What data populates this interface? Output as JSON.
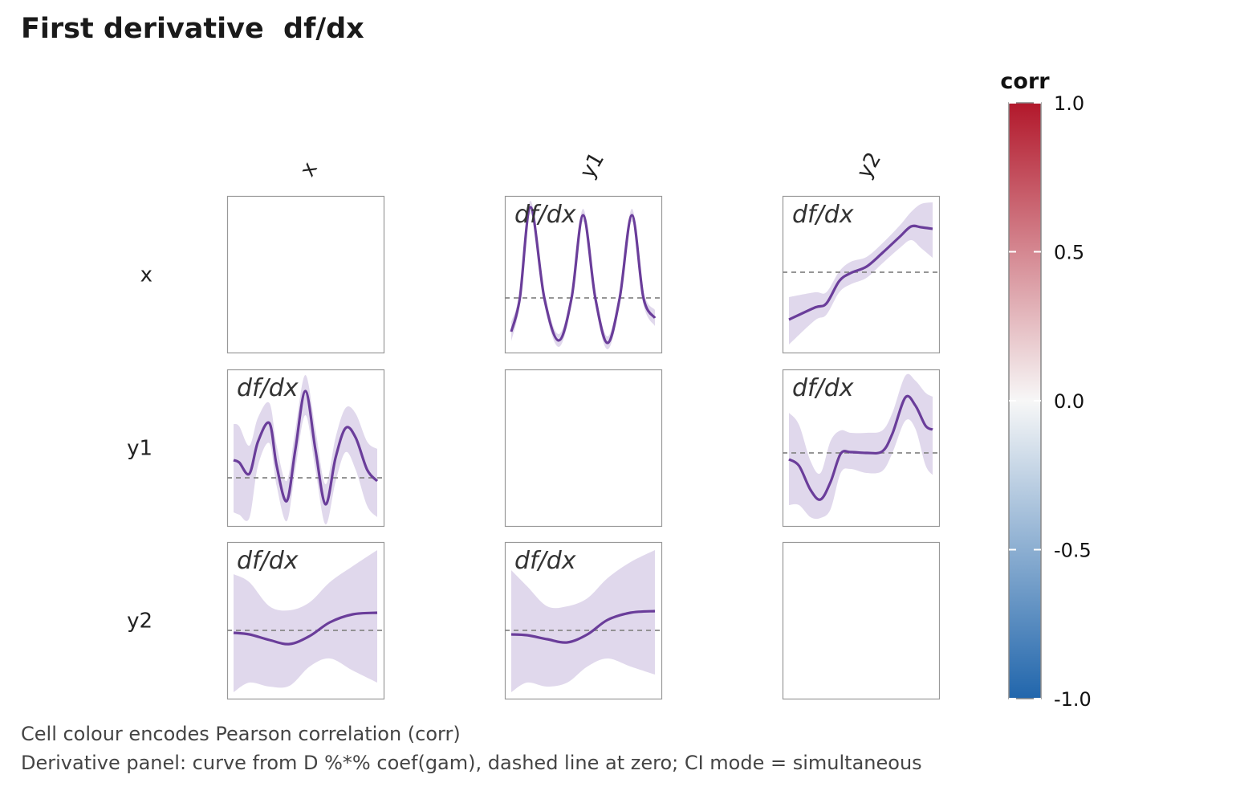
{
  "title": "First derivative  df/dx",
  "captions": [
    "Cell colour encodes Pearson correlation (corr)",
    "Derivative panel: curve from D %*% coef(gam), dashed line at zero; CI mode = simultaneous"
  ],
  "colors": {
    "curve": "#6a3d9a",
    "band": "#e0d8ec",
    "zero_line": "#888888",
    "panel_border": "#999999",
    "corr_high": "#b2182b",
    "corr_mid": "#f7f7f7",
    "corr_low": "#2166ac"
  },
  "chart_data": {
    "type": "line",
    "variables": [
      "x",
      "y1",
      "y2"
    ],
    "panel_label": "df/dx",
    "legend": {
      "title": "corr",
      "ticks": [
        "1.0",
        "0.5",
        "0.0",
        "-0.5",
        "-1.0"
      ],
      "tick_values": [
        1.0,
        0.5,
        0.0,
        -0.5,
        -1.0
      ],
      "range": [
        -1,
        1
      ],
      "placement": "right"
    },
    "panels": [
      {
        "row": "x",
        "col": "y1",
        "ylim": [
          -1.36,
          2.54
        ],
        "x": [
          0,
          0.06,
          0.134,
          0.23,
          0.33,
          0.42,
          0.5,
          0.585,
          0.67,
          0.755,
          0.84,
          0.92,
          1
        ],
        "fit": [
          -0.84,
          0,
          2.26,
          0,
          -1.06,
          0,
          2.06,
          0,
          -1.12,
          0,
          2.06,
          0,
          -0.5
        ],
        "upper": [
          -0.6,
          0.16,
          2.42,
          0.16,
          -0.9,
          0.16,
          2.22,
          0.16,
          -0.96,
          0.16,
          2.22,
          0.16,
          -0.3
        ],
        "lower": [
          -1.08,
          -0.16,
          2.1,
          -0.16,
          -1.22,
          -0.16,
          1.9,
          -0.16,
          -1.28,
          -0.16,
          1.9,
          -0.16,
          -0.7
        ]
      },
      {
        "row": "x",
        "col": "y2",
        "ylim": [
          -2.0,
          1.9
        ],
        "x": [
          0,
          0.18,
          0.26,
          0.35,
          0.43,
          0.54,
          0.65,
          0.77,
          0.85,
          0.92,
          1
        ],
        "fit": [
          -1.18,
          -0.88,
          -0.78,
          -0.22,
          -0.02,
          0.14,
          0.48,
          0.88,
          1.14,
          1.12,
          1.08
        ],
        "upper": [
          -0.62,
          -0.5,
          -0.5,
          0.02,
          0.26,
          0.38,
          0.72,
          1.16,
          1.5,
          1.7,
          1.74
        ],
        "lower": [
          -1.8,
          -1.2,
          -1.06,
          -0.5,
          -0.3,
          -0.14,
          0.22,
          0.6,
          0.8,
          0.6,
          0.36
        ]
      },
      {
        "row": "y1",
        "col": "x",
        "ylim": [
          -1.2,
          2.7
        ],
        "x": [
          0,
          0.04,
          0.11,
          0.17,
          0.25,
          0.3,
          0.37,
          0.43,
          0.5,
          0.57,
          0.64,
          0.71,
          0.78,
          0.85,
          0.93,
          1
        ],
        "fit": [
          0.44,
          0.38,
          0.1,
          0.9,
          1.36,
          0.3,
          -0.58,
          0.7,
          2.16,
          0.7,
          -0.66,
          0.5,
          1.24,
          1.0,
          0.2,
          -0.08
        ],
        "upper": [
          1.34,
          1.28,
          0.8,
          1.5,
          1.86,
          0.8,
          -0.08,
          1.2,
          2.56,
          1.2,
          -0.16,
          1.0,
          1.74,
          1.6,
          0.9,
          0.72
        ],
        "lower": [
          -0.86,
          -0.92,
          -1.0,
          0.3,
          0.86,
          -0.2,
          -1.08,
          0.2,
          1.56,
          0.2,
          -1.16,
          -0.1,
          0.64,
          0.2,
          -0.7,
          -0.98
        ]
      },
      {
        "row": "y1",
        "col": "y2",
        "ylim": [
          -1.82,
          2.08
        ],
        "x": [
          0,
          0.07,
          0.15,
          0.22,
          0.29,
          0.36,
          0.43,
          0.54,
          0.65,
          0.72,
          0.81,
          0.88,
          0.95,
          1
        ],
        "fit": [
          -0.16,
          -0.32,
          -0.92,
          -1.16,
          -0.72,
          -0.02,
          0.02,
          0,
          0.04,
          0.48,
          1.38,
          1.18,
          0.68,
          0.58
        ],
        "upper": [
          1.0,
          0.7,
          -0.2,
          -0.5,
          0.3,
          0.56,
          0.5,
          0.5,
          0.56,
          1.0,
          1.92,
          1.8,
          1.5,
          1.4
        ],
        "lower": [
          -1.3,
          -1.3,
          -1.6,
          -1.62,
          -1.4,
          -0.5,
          -0.4,
          -0.5,
          -0.45,
          0,
          0.8,
          0.6,
          -0.3,
          -0.55
        ]
      },
      {
        "row": "y2",
        "col": "x",
        "ylim": [
          -1.7,
          2.2
        ],
        "x": [
          0,
          0.11,
          0.25,
          0.39,
          0.53,
          0.67,
          0.83,
          1
        ],
        "fit": [
          -0.06,
          -0.1,
          -0.24,
          -0.34,
          -0.14,
          0.2,
          0.4,
          0.44
        ],
        "upper": [
          1.4,
          1.2,
          0.6,
          0.5,
          0.7,
          1.2,
          1.6,
          2.0
        ],
        "lower": [
          -1.54,
          -1.3,
          -1.4,
          -1.38,
          -0.9,
          -0.7,
          -1.0,
          -1.3
        ]
      },
      {
        "row": "y2",
        "col": "y1",
        "ylim": [
          -1.7,
          2.2
        ],
        "x": [
          0,
          0.11,
          0.25,
          0.39,
          0.53,
          0.67,
          0.83,
          1
        ],
        "fit": [
          -0.1,
          -0.12,
          -0.22,
          -0.3,
          -0.1,
          0.26,
          0.44,
          0.48
        ],
        "upper": [
          1.5,
          1.1,
          0.6,
          0.6,
          0.8,
          1.3,
          1.7,
          2.0
        ],
        "lower": [
          -1.54,
          -1.3,
          -1.4,
          -1.3,
          -0.9,
          -0.7,
          -0.9,
          -1.1
        ]
      }
    ]
  }
}
